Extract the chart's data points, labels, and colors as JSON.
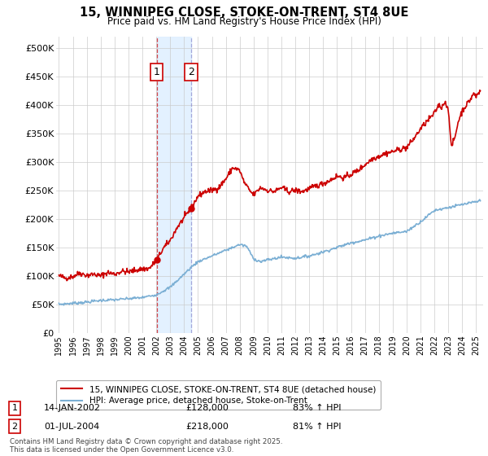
{
  "title": "15, WINNIPEG CLOSE, STOKE-ON-TRENT, ST4 8UE",
  "subtitle": "Price paid vs. HM Land Registry's House Price Index (HPI)",
  "ylim": [
    0,
    520000
  ],
  "yticks": [
    0,
    50000,
    100000,
    150000,
    200000,
    250000,
    300000,
    350000,
    400000,
    450000,
    500000
  ],
  "ytick_labels": [
    "£0",
    "£50K",
    "£100K",
    "£150K",
    "£200K",
    "£250K",
    "£300K",
    "£350K",
    "£400K",
    "£450K",
    "£500K"
  ],
  "xlim_start": 1994.8,
  "xlim_end": 2025.5,
  "xtick_years": [
    1995,
    1996,
    1997,
    1998,
    1999,
    2000,
    2001,
    2002,
    2003,
    2004,
    2005,
    2006,
    2007,
    2008,
    2009,
    2010,
    2011,
    2012,
    2013,
    2014,
    2015,
    2016,
    2017,
    2018,
    2019,
    2020,
    2021,
    2022,
    2023,
    2024,
    2025
  ],
  "sale1_x": 2002.04,
  "sale1_y": 128000,
  "sale1_label": "1",
  "sale2_x": 2004.5,
  "sale2_y": 218000,
  "sale2_label": "2",
  "house_color": "#cc0000",
  "hpi_color": "#7bafd4",
  "shade_color": "#ddeeff",
  "background_color": "#ffffff",
  "grid_color": "#cccccc",
  "legend_house": "15, WINNIPEG CLOSE, STOKE-ON-TRENT, ST4 8UE (detached house)",
  "legend_hpi": "HPI: Average price, detached house, Stoke-on-Trent",
  "note1_label": "1",
  "note1_date": "14-JAN-2002",
  "note1_price": "£128,000",
  "note1_hpi": "83% ↑ HPI",
  "note2_label": "2",
  "note2_date": "01-JUL-2004",
  "note2_price": "£218,000",
  "note2_hpi": "81% ↑ HPI",
  "footer": "Contains HM Land Registry data © Crown copyright and database right 2025.\nThis data is licensed under the Open Government Licence v3.0."
}
